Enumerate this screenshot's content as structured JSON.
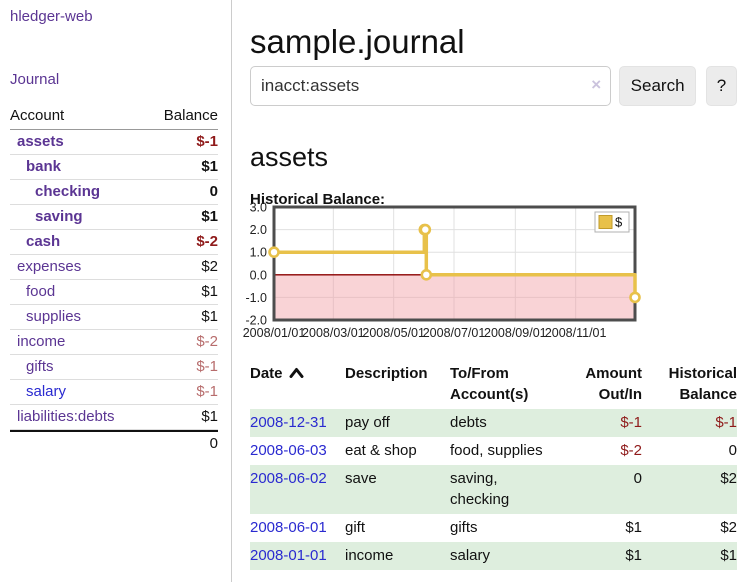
{
  "app": {
    "brand": "hledger-web"
  },
  "nav": {
    "journal": "Journal"
  },
  "sidebar": {
    "accounts": {
      "headers": {
        "account": "Account",
        "balance": "Balance"
      },
      "rows": [
        {
          "name": "assets",
          "balance": "$-1"
        },
        {
          "name": "bank",
          "balance": "$1"
        },
        {
          "name": "checking",
          "balance": "0"
        },
        {
          "name": "saving",
          "balance": "$1"
        },
        {
          "name": "cash",
          "balance": "$-2"
        },
        {
          "name": "expenses",
          "balance": "$2"
        },
        {
          "name": "food",
          "balance": "$1"
        },
        {
          "name": "supplies",
          "balance": "$1"
        },
        {
          "name": "income",
          "balance": "$-2"
        },
        {
          "name": "gifts",
          "balance": "$-1"
        },
        {
          "name": "salary",
          "balance": "$-1"
        },
        {
          "name": "liabilities:debts",
          "balance": "$1"
        }
      ],
      "total": "0"
    }
  },
  "main": {
    "title": "sample.journal",
    "search": {
      "value": "inacct:assets",
      "clear_icon": "×",
      "search_button": "Search",
      "help_button": "?"
    },
    "account_heading": "assets",
    "chart_heading": "Historical Balance:"
  },
  "chart_data": {
    "type": "line",
    "step": true,
    "title": "Historical Balance:",
    "series": [
      {
        "name": "$",
        "points": [
          [
            "2008-01-01",
            1
          ],
          [
            "2008-06-01",
            2
          ],
          [
            "2008-06-02",
            2
          ],
          [
            "2008-06-03",
            0
          ],
          [
            "2008-12-31",
            -1
          ]
        ]
      }
    ],
    "x_range": [
      "2008-01-01",
      "2008-12-31"
    ],
    "x_ticks": [
      "2008/01/01",
      "2008/03/01",
      "2008/05/01",
      "2008/07/01",
      "2008/09/01",
      "2008/11/01"
    ],
    "y_ticks": [
      "3.0",
      "2.0",
      "1.0",
      "0.0",
      "-1.0",
      "-2.0"
    ],
    "ylim": [
      -2,
      3
    ],
    "grid": true,
    "legend": [
      "$"
    ],
    "legend_position": "top-right",
    "colors": {
      "line": "#e8c14a",
      "marker_fill": "#ffffff",
      "negative_fill": "rgba(242,158,163,0.45)",
      "zero_line": "#8b0000",
      "border": "#4d4d4d",
      "gridline": "#e0e0e0"
    }
  },
  "register": {
    "headers": {
      "date": "Date",
      "description": "Description",
      "accounts": "To/From Account(s)",
      "amount": "Amount Out/In",
      "balance": "Historical Balance"
    },
    "sort": {
      "column": "Date",
      "direction": "ascending"
    },
    "rows": [
      {
        "date": "2008-12-31",
        "description": "pay off",
        "accounts": "debts",
        "amount": "$-1",
        "balance": "$-1"
      },
      {
        "date": "2008-06-03",
        "description": "eat & shop",
        "accounts": "food, supplies",
        "amount": "$-2",
        "balance": "0"
      },
      {
        "date": "2008-06-02",
        "description": "save",
        "accounts": "saving, checking",
        "amount": "0",
        "balance": "$2"
      },
      {
        "date": "2008-06-01",
        "description": "gift",
        "accounts": "gifts",
        "amount": "$1",
        "balance": "$2"
      },
      {
        "date": "2008-01-01",
        "description": "income",
        "accounts": "salary",
        "amount": "$1",
        "balance": "$1"
      }
    ]
  },
  "icons": {
    "sort": "chevron-up",
    "clear": "×"
  },
  "colors": {
    "accent_purple": "#5b3593",
    "link_blue": "#2a2ad0",
    "negative_strong": "#8f1a1a",
    "negative_muted": "#b76c6c",
    "row_stripe_green": "#deeede",
    "button_bg": "#ececec"
  }
}
